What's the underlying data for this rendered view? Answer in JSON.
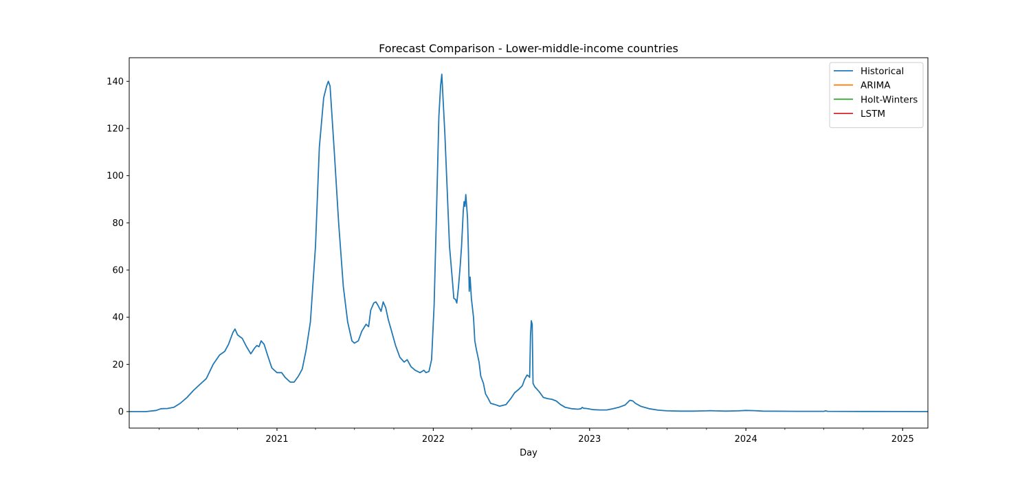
{
  "chart_data": {
    "type": "line",
    "title": "Forecast Comparison - Lower-middle-income countries",
    "xlabel": "Day",
    "ylabel": "",
    "x_axis": {
      "type": "date",
      "range": [
        "2020-01-22",
        "2025-03-01"
      ],
      "major_ticks": [
        "2021-01-01",
        "2022-01-01",
        "2023-01-01",
        "2024-01-01",
        "2025-01-01"
      ],
      "major_tick_labels": [
        "2021",
        "2022",
        "2023",
        "2024",
        "2025"
      ]
    },
    "y_axis": {
      "range": [
        -7,
        150
      ],
      "ticks": [
        0,
        20,
        40,
        60,
        80,
        100,
        120,
        140
      ],
      "tick_labels": [
        "0",
        "20",
        "40",
        "60",
        "80",
        "100",
        "120",
        "140"
      ]
    },
    "grid": false,
    "legend": {
      "placement": "top-right",
      "entries": [
        {
          "label": "Historical",
          "color": "#1f77b4"
        },
        {
          "label": "ARIMA",
          "color": "#ff7f0e"
        },
        {
          "label": "Holt-Winters",
          "color": "#2ca02c"
        },
        {
          "label": "LSTM",
          "color": "#d62728"
        }
      ]
    },
    "series": [
      {
        "name": "Historical",
        "color": "#1f77b4",
        "points": [
          [
            "2020-01-22",
            0
          ],
          [
            "2020-03-01",
            0
          ],
          [
            "2020-03-25",
            0.5
          ],
          [
            "2020-04-05",
            1.2
          ],
          [
            "2020-04-20",
            1.3
          ],
          [
            "2020-05-05",
            1.8
          ],
          [
            "2020-05-20",
            3.5
          ],
          [
            "2020-06-05",
            6
          ],
          [
            "2020-06-20",
            9
          ],
          [
            "2020-07-05",
            11.5
          ],
          [
            "2020-07-20",
            14
          ],
          [
            "2020-08-05",
            20
          ],
          [
            "2020-08-20",
            24
          ],
          [
            "2020-09-01",
            25.5
          ],
          [
            "2020-09-10",
            28.5
          ],
          [
            "2020-09-20",
            33.5
          ],
          [
            "2020-09-25",
            35
          ],
          [
            "2020-10-01",
            32.5
          ],
          [
            "2020-10-12",
            31
          ],
          [
            "2020-10-22",
            27.5
          ],
          [
            "2020-11-01",
            24.5
          ],
          [
            "2020-11-10",
            27
          ],
          [
            "2020-11-15",
            28
          ],
          [
            "2020-11-20",
            27.5
          ],
          [
            "2020-11-25",
            30
          ],
          [
            "2020-12-02",
            28.5
          ],
          [
            "2020-12-10",
            24
          ],
          [
            "2020-12-20",
            18.5
          ],
          [
            "2021-01-01",
            16.5
          ],
          [
            "2021-01-12",
            16.5
          ],
          [
            "2021-01-20",
            14.5
          ],
          [
            "2021-02-01",
            12.5
          ],
          [
            "2021-02-10",
            12.5
          ],
          [
            "2021-02-20",
            15
          ],
          [
            "2021-03-01",
            18
          ],
          [
            "2021-03-10",
            26
          ],
          [
            "2021-03-20",
            38
          ],
          [
            "2021-04-01",
            70
          ],
          [
            "2021-04-10",
            112
          ],
          [
            "2021-04-20",
            133
          ],
          [
            "2021-04-27",
            138
          ],
          [
            "2021-05-01",
            140
          ],
          [
            "2021-05-05",
            138
          ],
          [
            "2021-05-15",
            110
          ],
          [
            "2021-05-25",
            80
          ],
          [
            "2021-06-05",
            53
          ],
          [
            "2021-06-15",
            38
          ],
          [
            "2021-06-25",
            30
          ],
          [
            "2021-07-01",
            29
          ],
          [
            "2021-07-10",
            30
          ],
          [
            "2021-07-18",
            34
          ],
          [
            "2021-07-28",
            37
          ],
          [
            "2021-08-03",
            36
          ],
          [
            "2021-08-08",
            43
          ],
          [
            "2021-08-15",
            46
          ],
          [
            "2021-08-20",
            46.5
          ],
          [
            "2021-08-25",
            45
          ],
          [
            "2021-09-01",
            42.5
          ],
          [
            "2021-09-06",
            46.5
          ],
          [
            "2021-09-12",
            44
          ],
          [
            "2021-09-18",
            39
          ],
          [
            "2021-09-25",
            34.5
          ],
          [
            "2021-10-05",
            28
          ],
          [
            "2021-10-15",
            23
          ],
          [
            "2021-10-25",
            21
          ],
          [
            "2021-11-01",
            22
          ],
          [
            "2021-11-10",
            19
          ],
          [
            "2021-11-20",
            17.5
          ],
          [
            "2021-12-01",
            16.5
          ],
          [
            "2021-12-10",
            17.5
          ],
          [
            "2021-12-15",
            16.5
          ],
          [
            "2021-12-22",
            17
          ],
          [
            "2021-12-28",
            22
          ],
          [
            "2022-01-03",
            45
          ],
          [
            "2022-01-08",
            80
          ],
          [
            "2022-01-14",
            125
          ],
          [
            "2022-01-18",
            138
          ],
          [
            "2022-01-21",
            143
          ],
          [
            "2022-01-24",
            132
          ],
          [
            "2022-01-28",
            118
          ],
          [
            "2022-02-03",
            92
          ],
          [
            "2022-02-08",
            70
          ],
          [
            "2022-02-14",
            57
          ],
          [
            "2022-02-18",
            48
          ],
          [
            "2022-02-22",
            47.5
          ],
          [
            "2022-02-25",
            46
          ],
          [
            "2022-03-01",
            53
          ],
          [
            "2022-03-05",
            62
          ],
          [
            "2022-03-08",
            70
          ],
          [
            "2022-03-12",
            85
          ],
          [
            "2022-03-14",
            89
          ],
          [
            "2022-03-16",
            87
          ],
          [
            "2022-03-18",
            92
          ],
          [
            "2022-03-20",
            87
          ],
          [
            "2022-03-22",
            82
          ],
          [
            "2022-03-24",
            68
          ],
          [
            "2022-03-26",
            51
          ],
          [
            "2022-03-28",
            57
          ],
          [
            "2022-03-31",
            48
          ],
          [
            "2022-04-05",
            40
          ],
          [
            "2022-04-08",
            30
          ],
          [
            "2022-04-12",
            26
          ],
          [
            "2022-04-18",
            21
          ],
          [
            "2022-04-22",
            15
          ],
          [
            "2022-04-28",
            12
          ],
          [
            "2022-05-03",
            7.5
          ],
          [
            "2022-05-08",
            6
          ],
          [
            "2022-05-15",
            3.5
          ],
          [
            "2022-05-25",
            3
          ],
          [
            "2022-06-05",
            2.3
          ],
          [
            "2022-06-20",
            3
          ],
          [
            "2022-07-01",
            5.5
          ],
          [
            "2022-07-10",
            8
          ],
          [
            "2022-07-20",
            9.5
          ],
          [
            "2022-07-28",
            11
          ],
          [
            "2022-08-02",
            13.5
          ],
          [
            "2022-08-08",
            15.5
          ],
          [
            "2022-08-12",
            15
          ],
          [
            "2022-08-14",
            14.5
          ],
          [
            "2022-08-16",
            32
          ],
          [
            "2022-08-18",
            38.5
          ],
          [
            "2022-08-20",
            37
          ],
          [
            "2022-08-22",
            12
          ],
          [
            "2022-08-26",
            10.5
          ],
          [
            "2022-09-05",
            8.5
          ],
          [
            "2022-09-15",
            6
          ],
          [
            "2022-09-25",
            5.5
          ],
          [
            "2022-10-05",
            5.2
          ],
          [
            "2022-10-15",
            4.5
          ],
          [
            "2022-10-25",
            3
          ],
          [
            "2022-11-05",
            1.8
          ],
          [
            "2022-11-20",
            1.2
          ],
          [
            "2022-12-05",
            1.0
          ],
          [
            "2022-12-12",
            1.2
          ],
          [
            "2022-12-15",
            1.8
          ],
          [
            "2022-12-18",
            1.4
          ],
          [
            "2022-12-25",
            1.3
          ],
          [
            "2023-01-10",
            0.8
          ],
          [
            "2023-01-25",
            0.7
          ],
          [
            "2023-02-10",
            0.7
          ],
          [
            "2023-02-25",
            1.2
          ],
          [
            "2023-03-10",
            1.8
          ],
          [
            "2023-03-25",
            2.8
          ],
          [
            "2023-04-05",
            4.8
          ],
          [
            "2023-04-12",
            4.5
          ],
          [
            "2023-04-18",
            3.5
          ],
          [
            "2023-05-01",
            2.2
          ],
          [
            "2023-05-20",
            1.2
          ],
          [
            "2023-06-10",
            0.6
          ],
          [
            "2023-07-01",
            0.3
          ],
          [
            "2023-08-01",
            0.2
          ],
          [
            "2023-09-01",
            0.2
          ],
          [
            "2023-10-01",
            0.3
          ],
          [
            "2023-10-10",
            0.4
          ],
          [
            "2023-10-20",
            0.3
          ],
          [
            "2023-11-15",
            0.2
          ],
          [
            "2023-12-15",
            0.3
          ],
          [
            "2024-01-01",
            0.5
          ],
          [
            "2024-01-20",
            0.4
          ],
          [
            "2024-02-10",
            0.2
          ],
          [
            "2024-05-01",
            0.1
          ],
          [
            "2024-07-01",
            0.1
          ],
          [
            "2024-07-05",
            0.3
          ],
          [
            "2024-07-10",
            0.1
          ],
          [
            "2024-10-01",
            0.05
          ],
          [
            "2025-01-01",
            0.02
          ],
          [
            "2025-03-01",
            0
          ]
        ]
      },
      {
        "name": "ARIMA",
        "color": "#ff7f0e",
        "points": []
      },
      {
        "name": "Holt-Winters",
        "color": "#2ca02c",
        "points": []
      },
      {
        "name": "LSTM",
        "color": "#d62728",
        "points": []
      }
    ]
  }
}
